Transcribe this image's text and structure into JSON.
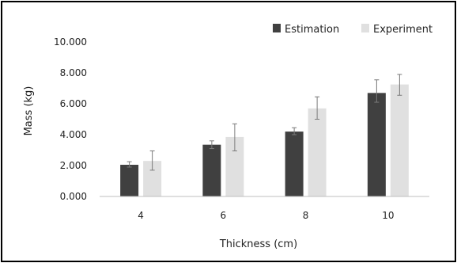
{
  "chart_data": {
    "type": "bar",
    "title": "",
    "xlabel": "Thickness (cm)",
    "ylabel": "Mass (kg)",
    "categories": [
      "4",
      "6",
      "8",
      "10"
    ],
    "ylim": [
      0,
      10
    ],
    "yticks": [
      0,
      2,
      4,
      6,
      8,
      10
    ],
    "ytick_labels": [
      "0.000",
      "2.000",
      "4.000",
      "6.000",
      "8.000",
      "10.000"
    ],
    "grid": false,
    "legend_position": "top-right",
    "series": [
      {
        "name": "Estimation",
        "color": "#404040",
        "values": [
          2.05,
          3.35,
          4.2,
          6.7
        ],
        "error_low": [
          1.9,
          3.1,
          4.0,
          6.1
        ],
        "error_high": [
          2.25,
          3.6,
          4.45,
          7.55
        ]
      },
      {
        "name": "Experiment",
        "color": "#e0e0e0",
        "values": [
          2.3,
          3.85,
          5.7,
          7.25
        ],
        "error_low": [
          1.7,
          2.95,
          5.0,
          6.55
        ],
        "error_high": [
          2.95,
          4.7,
          6.45,
          7.9
        ]
      }
    ]
  }
}
